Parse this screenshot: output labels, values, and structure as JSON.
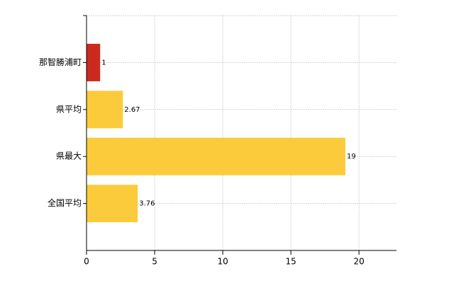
{
  "chart_data": {
    "type": "bar",
    "orientation": "horizontal",
    "categories": [
      "那智勝浦町",
      "県平均",
      "県最大",
      "全国平均"
    ],
    "values": [
      1,
      2.67,
      19,
      3.76
    ],
    "colors": [
      "#cc2a1f",
      "#fccb3c",
      "#fccb3c",
      "#fccb3c"
    ],
    "xlim": [
      0,
      22.75
    ],
    "xticks": [
      0,
      5,
      10,
      15,
      20
    ],
    "grid": true,
    "data_labels": true
  }
}
